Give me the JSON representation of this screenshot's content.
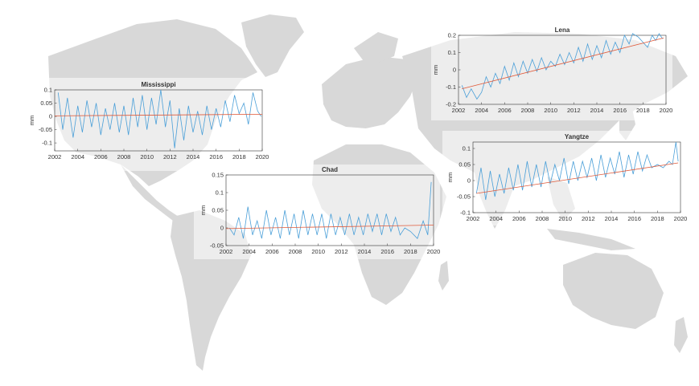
{
  "colors": {
    "series": "#4a9fd8",
    "trend": "#e05a3a",
    "map": "#d6d6d6",
    "axis": "#333333"
  },
  "chart_data": [
    {
      "type": "line",
      "title": "Lena",
      "ylabel": "mm",
      "xlim": [
        2002,
        2020
      ],
      "ylim": [
        -0.2,
        0.2
      ],
      "xticks": [
        2002,
        2004,
        2006,
        2008,
        2010,
        2012,
        2014,
        2016,
        2018,
        2020
      ],
      "yticks": [
        -0.2,
        -0.1,
        0,
        0.1,
        0.2
      ],
      "ytick_labels": [
        "-0.2",
        "-0.1",
        "0",
        "0.1",
        "0.2"
      ],
      "xtick_labels": [
        "2002",
        "2004",
        "2006",
        "2008",
        "2010",
        "2012",
        "2014",
        "2016",
        "2018",
        "2020"
      ],
      "trend": {
        "x": [
          2002.3,
          2019.8
        ],
        "y": [
          -0.11,
          0.185
        ]
      },
      "series": [
        {
          "x": [
            2002.3,
            2002.7,
            2003.1,
            2003.6,
            2004.0,
            2004.4,
            2004.8,
            2005.2,
            2005.6,
            2006.0,
            2006.4,
            2006.8,
            2007.2,
            2007.6,
            2008.0,
            2008.4,
            2008.8,
            2009.2,
            2009.6,
            2010.0,
            2010.4,
            2010.8,
            2011.2,
            2011.6,
            2012.0,
            2012.4,
            2012.8,
            2013.2,
            2013.6,
            2014.0,
            2014.4,
            2014.8,
            2015.2,
            2015.6,
            2016.0,
            2016.4,
            2016.8,
            2017.1,
            2017.6,
            2018.0,
            2018.4,
            2018.8,
            2019.1,
            2019.4,
            2019.7
          ],
          "y": [
            -0.09,
            -0.16,
            -0.11,
            -0.17,
            -0.13,
            -0.04,
            -0.1,
            -0.02,
            -0.08,
            0.02,
            -0.06,
            0.04,
            -0.04,
            0.05,
            -0.02,
            0.06,
            -0.01,
            0.07,
            0.0,
            0.05,
            0.02,
            0.09,
            0.03,
            0.1,
            0.04,
            0.13,
            0.05,
            0.15,
            0.06,
            0.14,
            0.07,
            0.17,
            0.09,
            0.16,
            0.1,
            0.2,
            0.15,
            0.21,
            0.19,
            0.16,
            0.13,
            0.2,
            0.17,
            0.21,
            0.18
          ]
        }
      ]
    },
    {
      "type": "line",
      "title": "Mississippi",
      "ylabel": "mm",
      "xlim": [
        2002,
        2020
      ],
      "ylim": [
        -0.13,
        0.1
      ],
      "xticks": [
        2002,
        2004,
        2006,
        2008,
        2010,
        2012,
        2014,
        2016,
        2018,
        2020
      ],
      "yticks": [
        -0.1,
        -0.05,
        0,
        0.05,
        0.1
      ],
      "ytick_labels": [
        "-0.1",
        "-0.05",
        "0",
        "0.05",
        "0.1"
      ],
      "xtick_labels": [
        "2002",
        "2004",
        "2006",
        "2008",
        "2010",
        "2012",
        "2014",
        "2016",
        "2018",
        "2020"
      ],
      "trend": {
        "x": [
          2002,
          2020
        ],
        "y": [
          0.002,
          0.008
        ]
      },
      "series": [
        {
          "x": [
            2002.3,
            2002.7,
            2003.1,
            2003.6,
            2004.0,
            2004.4,
            2004.8,
            2005.2,
            2005.6,
            2006.0,
            2006.4,
            2006.8,
            2007.2,
            2007.6,
            2008.0,
            2008.4,
            2008.8,
            2009.2,
            2009.6,
            2010.0,
            2010.4,
            2010.8,
            2011.2,
            2011.6,
            2012.0,
            2012.4,
            2012.8,
            2013.2,
            2013.6,
            2014.0,
            2014.4,
            2014.8,
            2015.2,
            2015.6,
            2016.0,
            2016.4,
            2016.8,
            2017.2,
            2017.6,
            2018.0,
            2018.4,
            2018.8,
            2019.2,
            2019.6,
            2019.9
          ],
          "y": [
            0.09,
            -0.05,
            0.07,
            -0.08,
            0.04,
            -0.06,
            0.06,
            -0.04,
            0.05,
            -0.07,
            0.03,
            -0.05,
            0.05,
            -0.06,
            0.04,
            -0.07,
            0.07,
            -0.04,
            0.08,
            -0.05,
            0.07,
            -0.03,
            0.1,
            -0.04,
            0.06,
            -0.12,
            0.03,
            -0.09,
            0.04,
            -0.06,
            0.02,
            -0.07,
            0.04,
            -0.05,
            0.03,
            -0.04,
            0.06,
            -0.02,
            0.08,
            0.01,
            0.05,
            -0.03,
            0.09,
            0.02,
            0.0
          ]
        }
      ]
    },
    {
      "type": "line",
      "title": "Chad",
      "ylabel": "mm",
      "xlim": [
        2002,
        2020
      ],
      "ylim": [
        -0.05,
        0.15
      ],
      "xticks": [
        2002,
        2004,
        2006,
        2008,
        2010,
        2012,
        2014,
        2016,
        2018,
        2020
      ],
      "yticks": [
        -0.05,
        0,
        0.05,
        0.1,
        0.15
      ],
      "ytick_labels": [
        "-0.05",
        "0",
        "0.05",
        "0.1",
        "0.15"
      ],
      "xtick_labels": [
        "2002",
        "2004",
        "2006",
        "2008",
        "2010",
        "2012",
        "2014",
        "2016",
        "2018",
        "2020"
      ],
      "trend": {
        "x": [
          2002,
          2020
        ],
        "y": [
          -0.002,
          0.008
        ]
      },
      "series": [
        {
          "x": [
            2002.3,
            2002.7,
            2003.1,
            2003.5,
            2003.9,
            2004.3,
            2004.7,
            2005.1,
            2005.5,
            2005.9,
            2006.3,
            2006.7,
            2007.1,
            2007.5,
            2007.9,
            2008.3,
            2008.7,
            2009.1,
            2009.5,
            2009.9,
            2010.3,
            2010.7,
            2011.1,
            2011.5,
            2011.9,
            2012.3,
            2012.7,
            2013.1,
            2013.5,
            2013.9,
            2014.3,
            2014.7,
            2015.1,
            2015.5,
            2015.9,
            2016.3,
            2016.7,
            2017.1,
            2017.5,
            2018.0,
            2018.6,
            2019.1,
            2019.5,
            2019.8
          ],
          "y": [
            0.0,
            -0.02,
            0.03,
            -0.03,
            0.06,
            -0.02,
            0.02,
            -0.03,
            0.05,
            -0.02,
            0.03,
            -0.03,
            0.05,
            -0.02,
            0.04,
            -0.03,
            0.05,
            -0.02,
            0.04,
            -0.02,
            0.04,
            -0.03,
            0.04,
            -0.02,
            0.03,
            -0.02,
            0.04,
            -0.02,
            0.03,
            -0.02,
            0.04,
            -0.01,
            0.04,
            -0.02,
            0.04,
            -0.01,
            0.03,
            -0.02,
            0.0,
            -0.01,
            -0.03,
            0.02,
            -0.02,
            0.13
          ]
        }
      ]
    },
    {
      "type": "line",
      "title": "Yangtze",
      "ylabel": "mm",
      "xlim": [
        2002,
        2020
      ],
      "ylim": [
        -0.1,
        0.12
      ],
      "xticks": [
        2002,
        2004,
        2006,
        2008,
        2010,
        2012,
        2014,
        2016,
        2018,
        2020
      ],
      "yticks": [
        -0.1,
        -0.05,
        0,
        0.05,
        0.1
      ],
      "ytick_labels": [
        "-0.1",
        "-0.05",
        "0",
        "0.05",
        "0.1"
      ],
      "xtick_labels": [
        "2002",
        "2004",
        "2006",
        "2008",
        "2010",
        "2012",
        "2014",
        "2016",
        "2018",
        "2020"
      ],
      "trend": {
        "x": [
          2002.3,
          2019.8
        ],
        "y": [
          -0.04,
          0.055
        ]
      },
      "series": [
        {
          "x": [
            2002.3,
            2002.7,
            2003.1,
            2003.5,
            2003.9,
            2004.3,
            2004.7,
            2005.1,
            2005.5,
            2005.9,
            2006.3,
            2006.7,
            2007.1,
            2007.5,
            2007.9,
            2008.3,
            2008.7,
            2009.1,
            2009.5,
            2009.9,
            2010.3,
            2010.7,
            2011.1,
            2011.5,
            2011.9,
            2012.3,
            2012.7,
            2013.1,
            2013.5,
            2013.9,
            2014.3,
            2014.7,
            2015.1,
            2015.5,
            2015.9,
            2016.3,
            2016.7,
            2017.1,
            2017.5,
            2018.0,
            2018.5,
            2019.0,
            2019.3,
            2019.6,
            2019.8
          ],
          "y": [
            -0.04,
            0.04,
            -0.06,
            0.03,
            -0.05,
            0.02,
            -0.04,
            0.04,
            -0.03,
            0.05,
            -0.03,
            0.06,
            -0.02,
            0.05,
            -0.02,
            0.06,
            -0.01,
            0.05,
            0.0,
            0.07,
            -0.01,
            0.06,
            0.0,
            0.06,
            0.01,
            0.07,
            0.0,
            0.08,
            0.01,
            0.07,
            0.02,
            0.09,
            0.01,
            0.08,
            0.02,
            0.09,
            0.03,
            0.08,
            0.04,
            0.05,
            0.04,
            0.06,
            0.05,
            0.12,
            0.06
          ]
        }
      ]
    }
  ]
}
